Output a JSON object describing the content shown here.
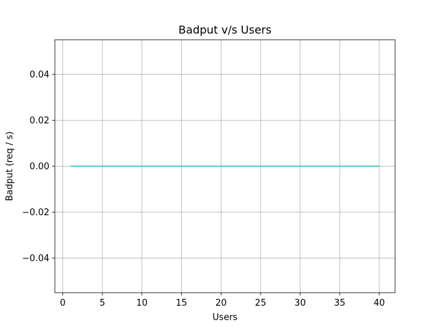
{
  "chart_data": {
    "type": "line",
    "title": "Badput v/s Users",
    "xlabel": "Users",
    "ylabel": "Badput (req / s)",
    "xlim": [
      -1,
      42
    ],
    "ylim": [
      -0.055,
      0.055
    ],
    "grid": true,
    "x_ticks": [
      0,
      5,
      10,
      15,
      20,
      25,
      30,
      35,
      40
    ],
    "x_tick_labels": [
      "0",
      "5",
      "10",
      "15",
      "20",
      "25",
      "30",
      "35",
      "40"
    ],
    "y_ticks": [
      -0.04,
      -0.02,
      0.0,
      0.02,
      0.04
    ],
    "y_tick_labels": [
      "−0.04",
      "−0.02",
      "0.00",
      "0.02",
      "0.04"
    ],
    "series": [
      {
        "color": "#17becf",
        "x": [
          1,
          40
        ],
        "y": [
          0,
          0
        ]
      }
    ]
  }
}
